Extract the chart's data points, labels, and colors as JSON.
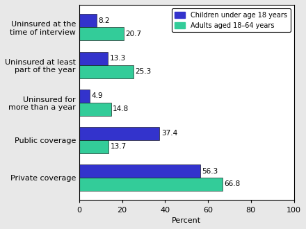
{
  "categories": [
    "Private coverage",
    "Public coverage",
    "Uninsured for\nmore than a year",
    "Uninsured at least\npart of the year",
    "Uninsured at the\ntime of interview"
  ],
  "children_values": [
    56.3,
    37.4,
    4.9,
    13.3,
    8.2
  ],
  "adults_values": [
    66.8,
    13.7,
    14.8,
    25.3,
    20.7
  ],
  "children_color": "#3333cc",
  "adults_color": "#33cc99",
  "xlabel": "Percent",
  "xlim": [
    0,
    100
  ],
  "xticks": [
    0,
    20,
    40,
    60,
    80,
    100
  ],
  "legend_labels": [
    "Children under age 18 years",
    "Adults aged 18–64 years"
  ],
  "bar_height": 0.35,
  "value_fontsize": 7.5,
  "label_fontsize": 8,
  "tick_fontsize": 8,
  "bg_color": "#ffffff",
  "outer_bg": "#e8e8e8"
}
